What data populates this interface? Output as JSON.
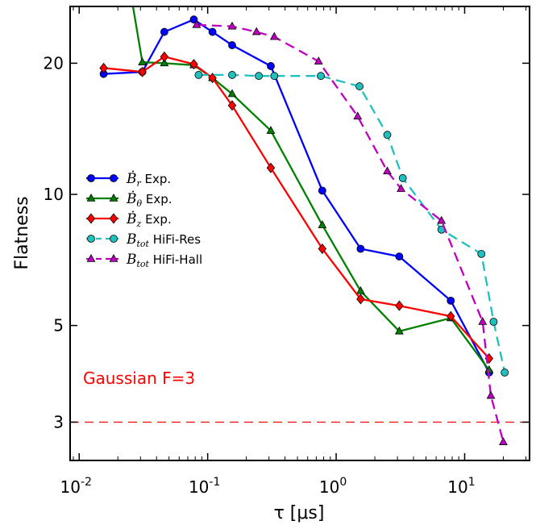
{
  "chart_data": {
    "type": "line",
    "title": "",
    "xlabel": "τ [μs]",
    "ylabel": "Flatness",
    "x_scale": "log",
    "y_scale": "log",
    "xlim": [
      0.0085,
      32
    ],
    "ylim": [
      2.45,
      27.0
    ],
    "x_ticks": [
      {
        "value": 0.01,
        "base": "10",
        "exp": "-2"
      },
      {
        "value": 0.1,
        "base": "10",
        "exp": "-1"
      },
      {
        "value": 1,
        "base": "10",
        "exp": "0"
      },
      {
        "value": 10,
        "base": "10",
        "exp": "1"
      }
    ],
    "y_ticks": [
      {
        "value": 3,
        "label": "3"
      },
      {
        "value": 5,
        "label": "5"
      },
      {
        "value": 10,
        "label": "10"
      },
      {
        "value": 20,
        "label": "20"
      }
    ],
    "grid": false,
    "legend_position": "center-left",
    "reference_line": {
      "y": 3,
      "label": "Gaussian F=3",
      "color": "#ff0000"
    },
    "series": [
      {
        "name": "Ḃr Exp.",
        "legend_symbol": "Ḃ",
        "legend_sub": "r",
        "legend_suffix": " Exp.",
        "color": "#0000ff",
        "marker": "circle",
        "linestyle": "solid",
        "points": [
          [
            0.0155,
            18.9
          ],
          [
            0.031,
            19.1
          ],
          [
            0.046,
            23.6
          ],
          [
            0.078,
            25.2
          ],
          [
            0.109,
            23.6
          ],
          [
            0.155,
            22.0
          ],
          [
            0.31,
            19.7
          ],
          [
            0.78,
            10.2
          ],
          [
            1.55,
            7.5
          ],
          [
            3.1,
            7.2
          ],
          [
            7.8,
            5.7
          ],
          [
            15.5,
            3.9
          ]
        ]
      },
      {
        "name": "Ḃθ Exp.",
        "legend_symbol": "Ḃ",
        "legend_sub": "θ",
        "legend_suffix": " Exp.",
        "color": "#008000",
        "marker": "triangle",
        "linestyle": "solid",
        "points": [
          [
            0.023,
            34.0
          ],
          [
            0.031,
            20.1
          ],
          [
            0.046,
            20.0
          ],
          [
            0.078,
            19.8
          ],
          [
            0.109,
            18.5
          ],
          [
            0.155,
            17.0
          ],
          [
            0.31,
            14.0
          ],
          [
            0.78,
            8.5
          ],
          [
            1.55,
            6.0
          ],
          [
            3.1,
            4.85
          ],
          [
            7.8,
            5.2
          ],
          [
            15.5,
            3.95
          ]
        ]
      },
      {
        "name": "Ḃz Exp.",
        "legend_symbol": "Ḃ",
        "legend_sub": "z",
        "legend_suffix": " Exp.",
        "color": "#ff0000",
        "marker": "diamond",
        "linestyle": "solid",
        "points": [
          [
            0.0155,
            19.5
          ],
          [
            0.031,
            19.1
          ],
          [
            0.046,
            20.7
          ],
          [
            0.078,
            19.9
          ],
          [
            0.109,
            18.5
          ],
          [
            0.155,
            16.0
          ],
          [
            0.31,
            11.5
          ],
          [
            0.78,
            7.5
          ],
          [
            1.55,
            5.75
          ],
          [
            3.1,
            5.55
          ],
          [
            7.8,
            5.25
          ],
          [
            15.5,
            4.2
          ]
        ]
      },
      {
        "name": "Btot HiFi-Res",
        "legend_symbol": "B",
        "legend_sub": "tot",
        "legend_suffix": " HiFi-Res",
        "color": "#20c0c0",
        "marker": "circle",
        "linestyle": "dashed",
        "points": [
          [
            0.085,
            18.8
          ],
          [
            0.155,
            18.8
          ],
          [
            0.25,
            18.7
          ],
          [
            0.33,
            18.7
          ],
          [
            0.76,
            18.7
          ],
          [
            1.52,
            17.7
          ],
          [
            2.5,
            13.7
          ],
          [
            3.3,
            10.9
          ],
          [
            6.6,
            8.3
          ],
          [
            13.5,
            7.3
          ],
          [
            16.8,
            5.1
          ],
          [
            20.5,
            3.9
          ]
        ]
      },
      {
        "name": "Btot HiFi-Hall",
        "legend_symbol": "B",
        "legend_sub": "tot",
        "legend_suffix": " HiFi-Hall",
        "color": "#c000c0",
        "marker": "triangle",
        "linestyle": "dashed",
        "points": [
          [
            0.082,
            24.5
          ],
          [
            0.155,
            24.3
          ],
          [
            0.24,
            23.6
          ],
          [
            0.33,
            23.0
          ],
          [
            0.73,
            20.2
          ],
          [
            1.47,
            15.1
          ],
          [
            2.5,
            11.3
          ],
          [
            3.2,
            10.3
          ],
          [
            6.6,
            8.7
          ],
          [
            13.8,
            5.1
          ],
          [
            16.0,
            3.45
          ],
          [
            20.0,
            2.7
          ]
        ]
      }
    ]
  }
}
